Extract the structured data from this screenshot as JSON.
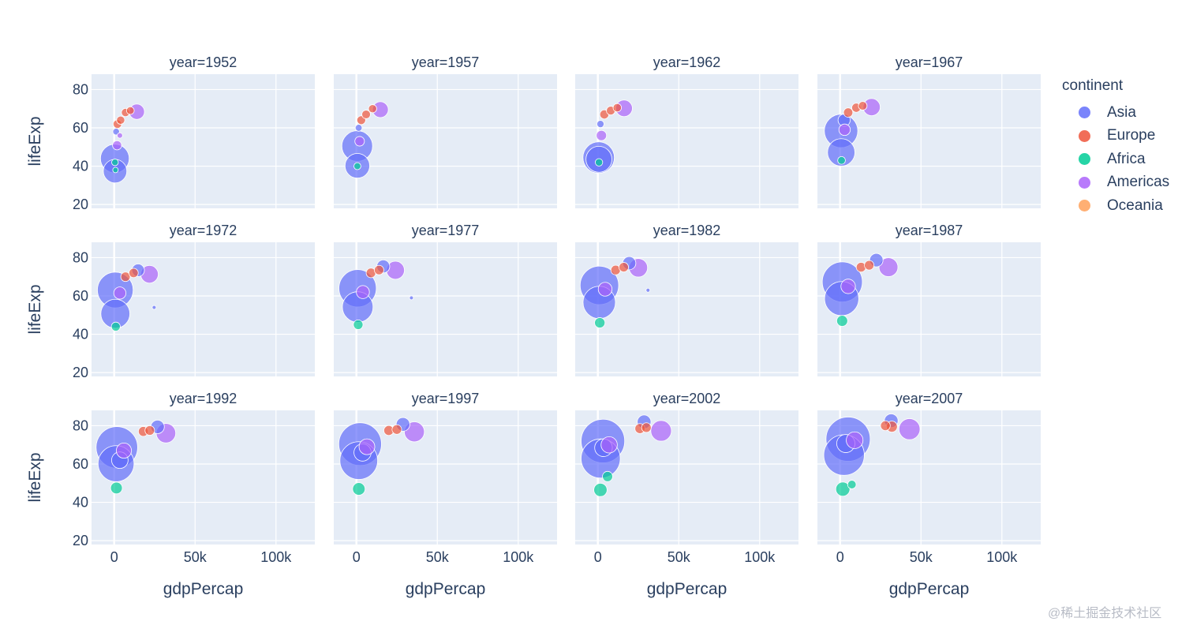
{
  "chart_data": {
    "type": "scatter",
    "subtype": "bubble",
    "layout_type": "facet-grid",
    "facet_rows": 3,
    "facet_cols": 4,
    "xlabel": "gdpPercap",
    "ylabel": "lifeExp",
    "xlim": [
      -14000,
      124000
    ],
    "ylim": [
      18,
      88
    ],
    "x_ticks": [
      0,
      50000,
      100000
    ],
    "x_tick_labels": [
      "0",
      "50k",
      "100k"
    ],
    "y_ticks": [
      20,
      40,
      60,
      80
    ],
    "y_tick_labels": [
      "20",
      "40",
      "60",
      "80"
    ],
    "grid": true,
    "legend": {
      "title": "continent",
      "placement": "right",
      "entries": [
        {
          "name": "Asia",
          "color": "#636efa"
        },
        {
          "name": "Europe",
          "color": "#ef553b"
        },
        {
          "name": "Africa",
          "color": "#00cc96"
        },
        {
          "name": "Americas",
          "color": "#ab63fa"
        },
        {
          "name": "Oceania",
          "color": "#ffa15a"
        }
      ]
    },
    "colors": {
      "plot_bg": "#e5ecf6",
      "grid": "#ffffff",
      "text": "#2a3f5f"
    },
    "panels": [
      {
        "title": "year=1952",
        "points": [
          {
            "continent": "Asia",
            "x": 400,
            "y": 44,
            "pop": 556
          },
          {
            "continent": "Asia",
            "x": 550,
            "y": 37.4,
            "pop": 372
          },
          {
            "continent": "Americas",
            "x": 13990,
            "y": 68.4,
            "pop": 158
          },
          {
            "continent": "Europe",
            "x": 2000,
            "y": 62,
            "pop": 50
          },
          {
            "continent": "Europe",
            "x": 4000,
            "y": 64,
            "pop": 45
          },
          {
            "continent": "Europe",
            "x": 7000,
            "y": 68,
            "pop": 45
          },
          {
            "continent": "Europe",
            "x": 10000,
            "y": 69,
            "pop": 40
          },
          {
            "continent": "Americas",
            "x": 1800,
            "y": 50.9,
            "pop": 56
          },
          {
            "continent": "Africa",
            "x": 500,
            "y": 42,
            "pop": 30
          },
          {
            "continent": "Africa",
            "x": 800,
            "y": 38,
            "pop": 20
          },
          {
            "continent": "Asia",
            "x": 1200,
            "y": 58,
            "pop": 30
          },
          {
            "continent": "Americas",
            "x": 3500,
            "y": 56,
            "pop": 20
          }
        ]
      },
      {
        "title": "year=1957",
        "points": [
          {
            "continent": "Asia",
            "x": 500,
            "y": 50.5,
            "pop": 637
          },
          {
            "continent": "Asia",
            "x": 590,
            "y": 40.2,
            "pop": 409
          },
          {
            "continent": "Americas",
            "x": 14800,
            "y": 69.5,
            "pop": 171
          },
          {
            "continent": "Europe",
            "x": 3000,
            "y": 64,
            "pop": 52
          },
          {
            "continent": "Europe",
            "x": 6000,
            "y": 67,
            "pop": 50
          },
          {
            "continent": "Europe",
            "x": 10000,
            "y": 70,
            "pop": 45
          },
          {
            "continent": "Americas",
            "x": 2000,
            "y": 53,
            "pop": 62
          },
          {
            "continent": "Africa",
            "x": 600,
            "y": 40,
            "pop": 33
          },
          {
            "continent": "Asia",
            "x": 1400,
            "y": 60,
            "pop": 32
          }
        ]
      },
      {
        "title": "year=1962",
        "points": [
          {
            "continent": "Asia",
            "x": 490,
            "y": 44.5,
            "pop": 666
          },
          {
            "continent": "Asia",
            "x": 660,
            "y": 43.6,
            "pop": 454
          },
          {
            "continent": "Americas",
            "x": 16200,
            "y": 70.2,
            "pop": 186
          },
          {
            "continent": "Europe",
            "x": 4000,
            "y": 67,
            "pop": 55
          },
          {
            "continent": "Europe",
            "x": 8000,
            "y": 69,
            "pop": 52
          },
          {
            "continent": "Europe",
            "x": 12000,
            "y": 70.5,
            "pop": 47
          },
          {
            "continent": "Americas",
            "x": 2200,
            "y": 56,
            "pop": 71
          },
          {
            "continent": "Africa",
            "x": 700,
            "y": 42,
            "pop": 37
          },
          {
            "continent": "Asia",
            "x": 1600,
            "y": 62,
            "pop": 35
          }
        ]
      },
      {
        "title": "year=1967",
        "points": [
          {
            "continent": "Asia",
            "x": 610,
            "y": 58.4,
            "pop": 755
          },
          {
            "continent": "Asia",
            "x": 700,
            "y": 47.2,
            "pop": 506
          },
          {
            "continent": "Americas",
            "x": 19500,
            "y": 70.8,
            "pop": 199
          },
          {
            "continent": "Europe",
            "x": 5000,
            "y": 68,
            "pop": 58
          },
          {
            "continent": "Europe",
            "x": 10000,
            "y": 70.5,
            "pop": 55
          },
          {
            "continent": "Europe",
            "x": 14000,
            "y": 71.5,
            "pop": 50
          },
          {
            "continent": "Americas",
            "x": 2800,
            "y": 59,
            "pop": 88
          },
          {
            "continent": "Africa",
            "x": 900,
            "y": 43,
            "pop": 40
          },
          {
            "continent": "Asia",
            "x": 2500,
            "y": 64,
            "pop": 100
          }
        ]
      },
      {
        "title": "year=1972",
        "points": [
          {
            "continent": "Asia",
            "x": 680,
            "y": 63.1,
            "pop": 862
          },
          {
            "continent": "Asia",
            "x": 720,
            "y": 50.7,
            "pop": 567
          },
          {
            "continent": "Americas",
            "x": 21800,
            "y": 71.3,
            "pop": 210
          },
          {
            "continent": "Europe",
            "x": 7000,
            "y": 70,
            "pop": 60
          },
          {
            "continent": "Europe",
            "x": 12000,
            "y": 72,
            "pop": 58
          },
          {
            "continent": "Asia",
            "x": 14800,
            "y": 73.4,
            "pop": 107
          },
          {
            "continent": "Americas",
            "x": 3500,
            "y": 61.5,
            "pop": 100
          },
          {
            "continent": "Africa",
            "x": 1000,
            "y": 44,
            "pop": 54
          },
          {
            "continent": "Asia",
            "x": 24700,
            "y": 54,
            "pop": 5
          }
        ]
      },
      {
        "title": "year=1977",
        "points": [
          {
            "continent": "Asia",
            "x": 740,
            "y": 64,
            "pop": 943
          },
          {
            "continent": "Asia",
            "x": 810,
            "y": 54.2,
            "pop": 634
          },
          {
            "continent": "Americas",
            "x": 24100,
            "y": 73.4,
            "pop": 220
          },
          {
            "continent": "Europe",
            "x": 9000,
            "y": 72,
            "pop": 62
          },
          {
            "continent": "Europe",
            "x": 14000,
            "y": 73.5,
            "pop": 60
          },
          {
            "continent": "Asia",
            "x": 16600,
            "y": 75.4,
            "pop": 114
          },
          {
            "continent": "Americas",
            "x": 4000,
            "y": 62,
            "pop": 115
          },
          {
            "continent": "Africa",
            "x": 1100,
            "y": 45,
            "pop": 62
          },
          {
            "continent": "Asia",
            "x": 34000,
            "y": 59,
            "pop": 5
          }
        ]
      },
      {
        "title": "year=1982",
        "points": [
          {
            "continent": "Asia",
            "x": 960,
            "y": 65.5,
            "pop": 1000
          },
          {
            "continent": "Asia",
            "x": 860,
            "y": 56.6,
            "pop": 708
          },
          {
            "continent": "Americas",
            "x": 25000,
            "y": 74.7,
            "pop": 232
          },
          {
            "continent": "Europe",
            "x": 11000,
            "y": 73.5,
            "pop": 62
          },
          {
            "continent": "Europe",
            "x": 16000,
            "y": 75,
            "pop": 61
          },
          {
            "continent": "Asia",
            "x": 19400,
            "y": 77.1,
            "pop": 118
          },
          {
            "continent": "Americas",
            "x": 4500,
            "y": 63.5,
            "pop": 128
          },
          {
            "continent": "Africa",
            "x": 1200,
            "y": 46,
            "pop": 73
          },
          {
            "continent": "Asia",
            "x": 31000,
            "y": 63,
            "pop": 5
          }
        ]
      },
      {
        "title": "year=1987",
        "points": [
          {
            "continent": "Asia",
            "x": 1380,
            "y": 67.3,
            "pop": 1084
          },
          {
            "continent": "Asia",
            "x": 980,
            "y": 58.6,
            "pop": 788
          },
          {
            "continent": "Americas",
            "x": 29900,
            "y": 75,
            "pop": 242
          },
          {
            "continent": "Europe",
            "x": 13000,
            "y": 75,
            "pop": 63
          },
          {
            "continent": "Europe",
            "x": 18000,
            "y": 76,
            "pop": 61
          },
          {
            "continent": "Asia",
            "x": 22400,
            "y": 78.7,
            "pop": 122
          },
          {
            "continent": "Americas",
            "x": 5000,
            "y": 65,
            "pop": 142
          },
          {
            "continent": "Africa",
            "x": 1300,
            "y": 47,
            "pop": 81
          }
        ]
      },
      {
        "title": "year=1992",
        "points": [
          {
            "continent": "Asia",
            "x": 1650,
            "y": 68.7,
            "pop": 1165
          },
          {
            "continent": "Asia",
            "x": 1160,
            "y": 60.2,
            "pop": 872
          },
          {
            "continent": "Americas",
            "x": 32000,
            "y": 76.1,
            "pop": 257
          },
          {
            "continent": "Europe",
            "x": 18000,
            "y": 77,
            "pop": 65
          },
          {
            "continent": "Europe",
            "x": 22000,
            "y": 77.5,
            "pop": 62
          },
          {
            "continent": "Asia",
            "x": 26800,
            "y": 79.4,
            "pop": 124
          },
          {
            "continent": "Americas",
            "x": 6000,
            "y": 67,
            "pop": 155
          },
          {
            "continent": "Africa",
            "x": 1400,
            "y": 47.5,
            "pop": 93
          },
          {
            "continent": "Asia",
            "x": 3500,
            "y": 62,
            "pop": 184
          }
        ]
      },
      {
        "title": "year=1997",
        "points": [
          {
            "continent": "Asia",
            "x": 2300,
            "y": 70.4,
            "pop": 1230
          },
          {
            "continent": "Asia",
            "x": 1460,
            "y": 61.8,
            "pop": 959
          },
          {
            "continent": "Americas",
            "x": 35800,
            "y": 76.8,
            "pop": 272
          },
          {
            "continent": "Europe",
            "x": 20000,
            "y": 77.5,
            "pop": 66
          },
          {
            "continent": "Europe",
            "x": 25000,
            "y": 78,
            "pop": 62
          },
          {
            "continent": "Asia",
            "x": 28800,
            "y": 80.7,
            "pop": 126
          },
          {
            "continent": "Americas",
            "x": 6500,
            "y": 69,
            "pop": 168
          },
          {
            "continent": "Africa",
            "x": 1500,
            "y": 47,
            "pop": 106
          },
          {
            "continent": "Asia",
            "x": 3800,
            "y": 66,
            "pop": 200
          }
        ]
      },
      {
        "title": "year=2002",
        "points": [
          {
            "continent": "Asia",
            "x": 3120,
            "y": 72,
            "pop": 1280
          },
          {
            "continent": "Asia",
            "x": 1750,
            "y": 62.9,
            "pop": 1034
          },
          {
            "continent": "Americas",
            "x": 39100,
            "y": 77.3,
            "pop": 288
          },
          {
            "continent": "Europe",
            "x": 26000,
            "y": 78.5,
            "pop": 67
          },
          {
            "continent": "Europe",
            "x": 30000,
            "y": 79,
            "pop": 62
          },
          {
            "continent": "Asia",
            "x": 28600,
            "y": 82,
            "pop": 127
          },
          {
            "continent": "Americas",
            "x": 7000,
            "y": 70,
            "pop": 179
          },
          {
            "continent": "Africa",
            "x": 1600,
            "y": 46.5,
            "pop": 119
          },
          {
            "continent": "Africa",
            "x": 6000,
            "y": 53.5,
            "pop": 70
          },
          {
            "continent": "Asia",
            "x": 3500,
            "y": 68.5,
            "pop": 211
          }
        ]
      },
      {
        "title": "year=2007",
        "points": [
          {
            "continent": "Asia",
            "x": 4960,
            "y": 73,
            "pop": 1319
          },
          {
            "continent": "Asia",
            "x": 2450,
            "y": 64.7,
            "pop": 1110
          },
          {
            "continent": "Americas",
            "x": 42900,
            "y": 78.2,
            "pop": 301
          },
          {
            "continent": "Europe",
            "x": 32000,
            "y": 79.5,
            "pop": 82
          },
          {
            "continent": "Europe",
            "x": 28000,
            "y": 80,
            "pop": 64
          },
          {
            "continent": "Asia",
            "x": 31600,
            "y": 82.6,
            "pop": 127
          },
          {
            "continent": "Americas",
            "x": 9000,
            "y": 72.4,
            "pop": 190
          },
          {
            "continent": "Africa",
            "x": 1700,
            "y": 46.9,
            "pop": 135
          },
          {
            "continent": "Africa",
            "x": 7300,
            "y": 49.3,
            "pop": 49
          },
          {
            "continent": "Asia",
            "x": 3540,
            "y": 70.7,
            "pop": 224
          }
        ]
      }
    ]
  },
  "watermark": "@稀土掘金技术社区"
}
